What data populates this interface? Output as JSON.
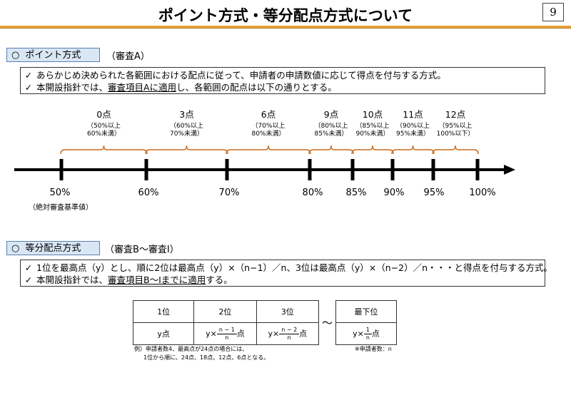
{
  "header": {
    "title": "ポイント方式・等分配点方式について",
    "page_number": "9"
  },
  "section1": {
    "circle": "○",
    "tab_label": "ポイント方式",
    "subtitle": "（審査A）",
    "bullet_mark": "✓",
    "bullet1": "あらかじめ決められた各範囲における配点に従って、申請者の申請数値に応じて得点を付与する方式。",
    "bullet2_pre": "本開設指針では、",
    "bullet2_under": "審査項目Aに適用",
    "bullet2_post": "し、各範囲の配点は以下の通りとする。"
  },
  "scale": {
    "points": [
      {
        "label": "0点",
        "range1": "（50%以上",
        "range2": "60%未満）"
      },
      {
        "label": "3点",
        "range1": "（60%以上",
        "range2": "70%未満）"
      },
      {
        "label": "6点",
        "range1": "（70%以上",
        "range2": "80%未満）"
      },
      {
        "label": "9点",
        "range1": "（80%以上",
        "range2": "85%未満）"
      },
      {
        "label": "10点",
        "range1": "（85%以上",
        "range2": "90%未満）"
      },
      {
        "label": "11点",
        "range1": "（90%以上",
        "range2": "95%未満）"
      },
      {
        "label": "12点",
        "range1": "（95%以上",
        "range2": "100%以下）"
      }
    ],
    "ticks": [
      "50%",
      "60%",
      "70%",
      "80%",
      "85%",
      "90%",
      "95%",
      "100%"
    ],
    "base_note": "（絶対審査基準値）",
    "color": "#c86a1a"
  },
  "section2": {
    "circle": "○",
    "tab_label": "等分配点方式",
    "subtitle": "（審査B～審査I）",
    "bullet_mark": "✓",
    "bullet1": "1位を最高点（y）とし、順に2位は最高点（y）×（n−1）／n、3位は最高点（y）×（n−2）／n・・・と得点を付与する方式。",
    "bullet2_pre": "本開設指針では、",
    "bullet2_under": "審査項目B～Iまでに適用",
    "bullet2_post": "する。"
  },
  "table": {
    "h1": "1位",
    "h2": "2位",
    "h3": "3位",
    "h_last": "最下位",
    "c1": "y点",
    "y_times": "y×",
    "c2_num": "n − 1",
    "c3_num": "n − 2",
    "clast_num": "1",
    "den": "n",
    "pt": "点",
    "tilde": "～",
    "example_line1": "例）申請者数4、最高点が24点の場合には、",
    "example_line2": "1位から順に、24点、18点、12点、6点となる。",
    "applicants_note": "※申請者数：n"
  }
}
